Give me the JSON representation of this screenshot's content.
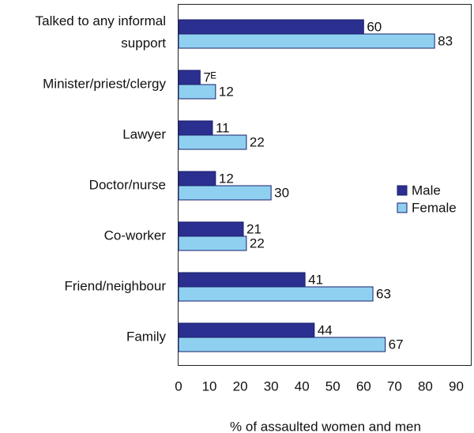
{
  "chart_data": {
    "type": "hbar",
    "x_label": "% of assaulted women and men",
    "categories": [
      "Talked to any informal support",
      "Minister/priest/clergy",
      "Lawyer",
      "Doctor/nurse",
      "Co-worker",
      "Friend/neighbour",
      "Family"
    ],
    "series": [
      {
        "name": "Male",
        "color": "#2b2f8f",
        "values": [
          60,
          7,
          11,
          12,
          21,
          41,
          44
        ],
        "value_labels": [
          "60",
          "7ᴱ",
          "11",
          "12",
          "21",
          "41",
          "44"
        ]
      },
      {
        "name": "Female",
        "color": "#8fd0f0",
        "values": [
          83,
          12,
          22,
          30,
          22,
          63,
          67
        ]
      }
    ],
    "xlim": [
      0,
      95
    ],
    "xticks": [
      0,
      10,
      20,
      30,
      40,
      50,
      60,
      70,
      80,
      90
    ],
    "legend": "right"
  }
}
